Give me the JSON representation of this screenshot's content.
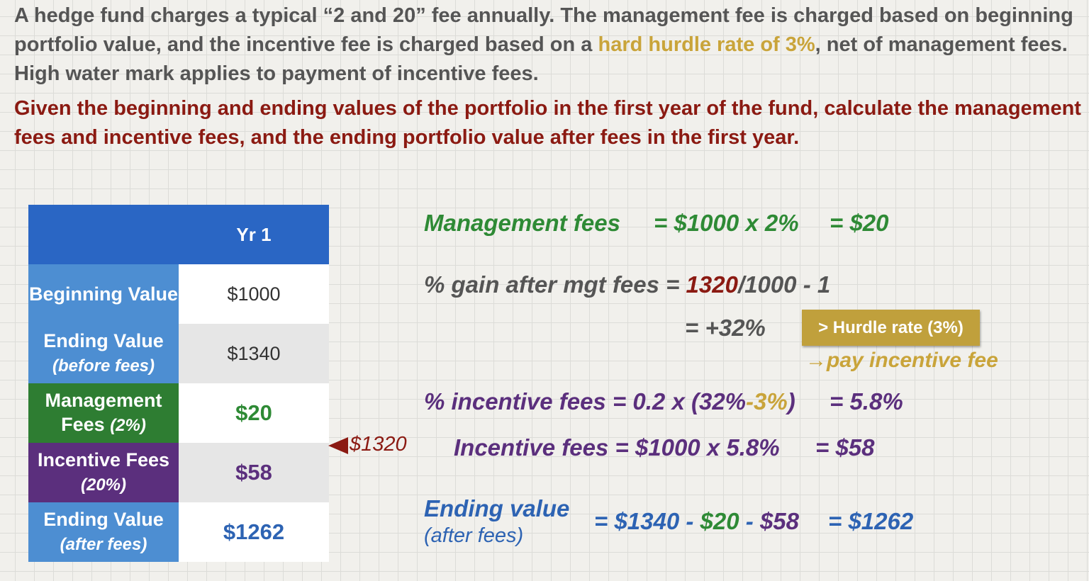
{
  "intro": {
    "part1": "A hedge fund charges a typical “2 and 20” fee annually.  The management fee is charged based on beginning portfolio value, and the incentive fee is charged based on a ",
    "hurdle_highlight": "hard hurdle rate of 3%",
    "part2": ", net of management fees.  High water mark applies to payment of incentive fees."
  },
  "question": "Given the beginning and ending values of the portfolio in the first year of the fund, calculate the management fees and incentive fees, and the ending portfolio value after fees in the first year.",
  "table": {
    "header": "Yr 1",
    "rows": [
      {
        "label": "Beginning Value",
        "sub": "",
        "value": "$1000"
      },
      {
        "label": "Ending Value",
        "sub": "(before fees)",
        "value": "$1340"
      },
      {
        "label": "Management Fees",
        "sub": "(2%)",
        "value": "$20"
      },
      {
        "label": "Incentive Fees",
        "sub": "(20%)",
        "value": "$58"
      },
      {
        "label": "Ending Value",
        "sub": "(after fees)",
        "value": "$1262"
      }
    ]
  },
  "pointer_value": "$1320",
  "mgmt": {
    "label": "Management fees",
    "eq1": "= $1000 x 2%",
    "eq2": "= $20"
  },
  "gain": {
    "label": "% gain after mgt fees =",
    "num": "1320",
    "rest": "/1000 - 1",
    "result": "= +32%"
  },
  "hurdle_badge": "> Hurdle rate (3%)",
  "pay_incentive": "→pay incentive fee",
  "pct_incentive": {
    "label": "% incentive fees =",
    "expr1": "0.2 x (32%",
    "hurdle": "-3%",
    "expr2": ")",
    "result": "= 5.8%"
  },
  "incentive": {
    "label": "Incentive fees =",
    "expr": "$1000 x 5.8%",
    "result": "= $58"
  },
  "ending": {
    "label": "Ending value",
    "sub": "(after fees)",
    "eq": "= $1340 -",
    "mgmt": "$20",
    "dash": "-",
    "inc": "$58",
    "result": "= $1262"
  }
}
